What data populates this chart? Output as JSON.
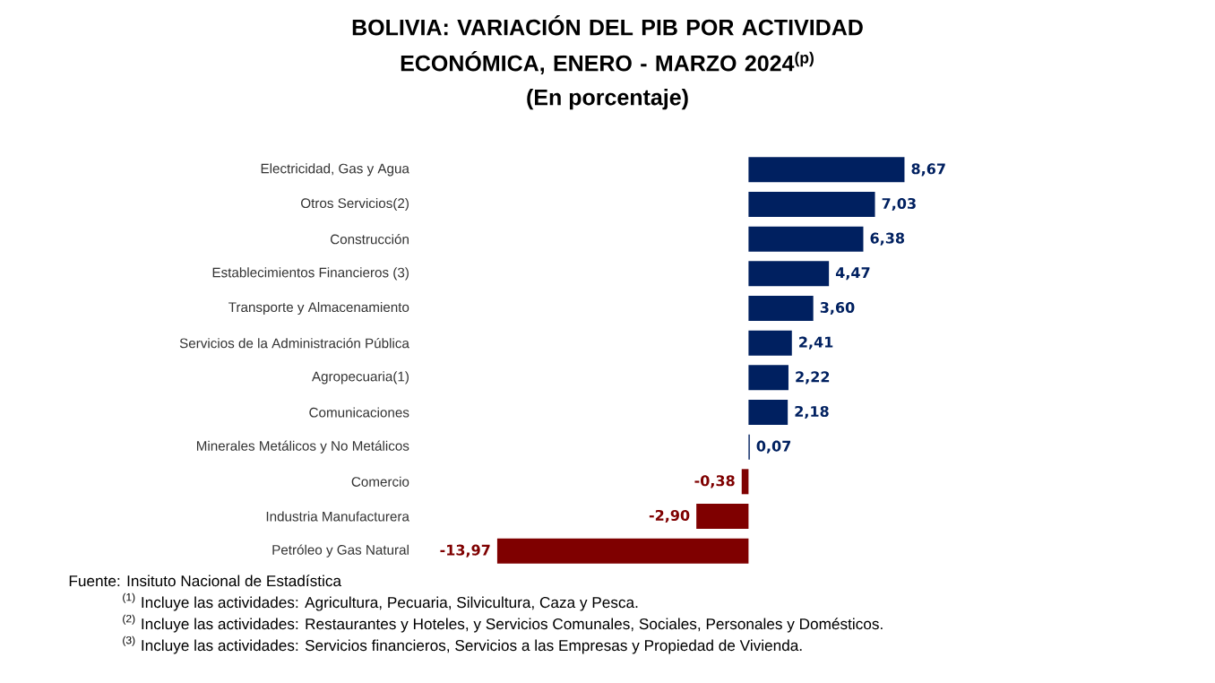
{
  "chart_data": {
    "type": "bar",
    "orientation": "horizontal",
    "title": "BOLIVIA: VARIACIÓN DEL PIB POR ACTIVIDAD ECONÓMICA, ENERO - MARZO 2024$^{(p)}$",
    "subtitle": "(En porcentaje)",
    "categories": [
      "Electricidad, Gas y Agua",
      "Otros Servicios(2)",
      "Construcción",
      "Establecimientos Financieros (3)",
      "Transporte y Almacenamiento",
      "Servicios de la Administración Pública",
      "Agropecuaria(1)",
      "Comunicaciones",
      "Minerales Metálicos y No Metálicos",
      "Comercio",
      "Industria Manufacturera",
      "Petróleo y Gas Natural"
    ],
    "values": [
      8.67,
      7.03,
      6.38,
      4.47,
      3.6,
      2.41,
      2.22,
      2.18,
      0.07,
      -0.38,
      -2.9,
      -13.97
    ],
    "value_labels": [
      "8,67",
      "7,03",
      "6,38",
      "4,47",
      "3,60",
      "2,41",
      "2,22",
      "2,18",
      "0,07",
      "-0,38",
      "-2,90",
      "-13,97"
    ],
    "colors": [
      "#002060",
      "#002060",
      "#002060",
      "#002060",
      "#002060",
      "#002060",
      "#002060",
      "#002060",
      "#002060",
      "#7f0000",
      "#7f0000",
      "#7f0000"
    ],
    "annotations": [
      "Fuente: Insituto Nacional de Estadística",
      "$^{(1)}$ Incluye las actividades: Agricultura, Pecuaria, Silvicultura, Caza y Pesca.",
      "$^{(2)}$ Incluye las actividades: Restaurantes y Hoteles, y Servicios Comunales, Sociales, Personales y Domésticos.",
      "$^{(3)}$ Incluye las actividades: Servicios financieros, Servicios a las Empresas y Propiedad de Vivienda."
    ]
  }
}
